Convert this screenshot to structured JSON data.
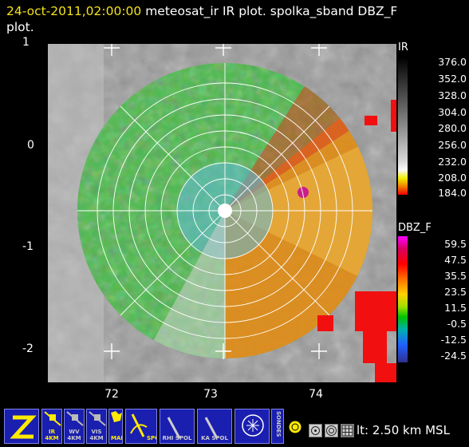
{
  "title": {
    "time": "24-oct-2011,02:00:00",
    "line1_rest": " meteosat_ir IR  plot.  spolka_sband DBZ_F",
    "line2": "plot."
  },
  "axes": {
    "y_labels": [
      "1",
      "0",
      "-1",
      "-2"
    ],
    "x_labels": [
      "72",
      "73",
      "74"
    ]
  },
  "colorbars": {
    "ir": {
      "name": "IR",
      "values": [
        "376.0",
        "352.0",
        "328.0",
        "304.0",
        "280.0",
        "256.0",
        "232.0",
        "208.0",
        "184.0"
      ]
    },
    "dbz": {
      "name": "DBZ_F",
      "values": [
        "59.5",
        "47.5",
        "35.5",
        "23.5",
        "11.5",
        "-0.5",
        "-12.5",
        "-24.5"
      ]
    }
  },
  "toolbar": {
    "buttons": [
      {
        "name": "z-button",
        "caption": ""
      },
      {
        "name": "ir-4km-button",
        "caption": "IR 4KM"
      },
      {
        "name": "wv-4km-button",
        "caption": "WV 4KM"
      },
      {
        "name": "vis-4km-button",
        "caption": "VIS 4KM"
      },
      {
        "name": "map-button",
        "caption": "MAP"
      },
      {
        "name": "spol-button",
        "caption": "SPOL"
      },
      {
        "name": "rhi-spol-button",
        "caption": "RHI SPOL"
      },
      {
        "name": "ka-spol-button",
        "caption": "KA SPOL"
      },
      {
        "name": "sounding-button",
        "caption": ""
      },
      {
        "name": "sondes-button",
        "caption": "SONDES"
      },
      {
        "name": "radar-site-button",
        "caption": ""
      }
    ],
    "status": "lt: 2.50 km MSL"
  },
  "colors": {
    "title_time": "#f3e21b",
    "toolbar_blue": "#1a1fb0"
  }
}
